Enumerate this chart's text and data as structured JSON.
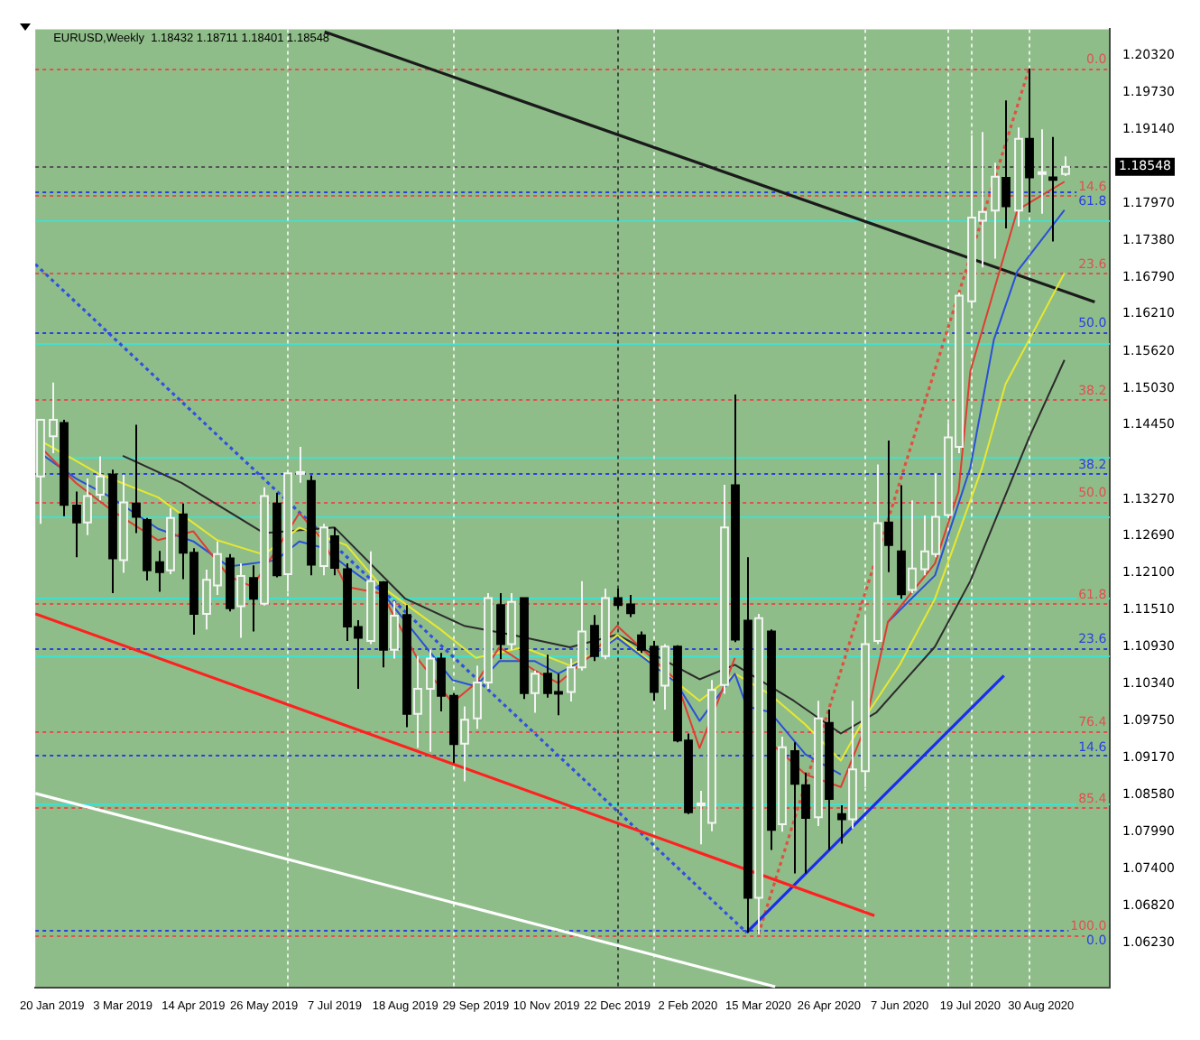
{
  "chart_data": {
    "type": "candlestick",
    "title": "EURUSD,Weekly  1.18432 1.18711 1.18401 1.18548",
    "x": [
      "2019-01-13",
      "2019-01-20",
      "2019-01-27",
      "2019-02-03",
      "2019-02-10",
      "2019-02-17",
      "2019-02-24",
      "2019-03-03",
      "2019-03-10",
      "2019-03-17",
      "2019-03-24",
      "2019-03-31",
      "2019-04-07",
      "2019-04-14",
      "2019-04-21",
      "2019-04-28",
      "2019-05-05",
      "2019-05-12",
      "2019-05-19",
      "2019-05-26",
      "2019-06-02",
      "2019-06-09",
      "2019-06-16",
      "2019-06-23",
      "2019-06-30",
      "2019-07-07",
      "2019-07-14",
      "2019-07-21",
      "2019-07-28",
      "2019-08-04",
      "2019-08-11",
      "2019-08-18",
      "2019-08-25",
      "2019-09-01",
      "2019-09-08",
      "2019-09-15",
      "2019-09-22",
      "2019-09-29",
      "2019-10-06",
      "2019-10-13",
      "2019-10-20",
      "2019-10-27",
      "2019-11-03",
      "2019-11-10",
      "2019-11-17",
      "2019-11-24",
      "2019-12-01",
      "2019-12-08",
      "2019-12-15",
      "2019-12-22",
      "2019-12-29",
      "2020-01-05",
      "2020-01-12",
      "2020-01-19",
      "2020-01-26",
      "2020-02-02",
      "2020-02-09",
      "2020-02-16",
      "2020-02-23",
      "2020-03-01",
      "2020-03-08",
      "2020-03-15",
      "2020-03-22",
      "2020-03-29",
      "2020-04-05",
      "2020-04-12",
      "2020-04-19",
      "2020-04-26",
      "2020-05-03",
      "2020-05-10",
      "2020-05-17",
      "2020-05-24",
      "2020-05-31",
      "2020-06-07",
      "2020-06-14",
      "2020-06-21",
      "2020-06-28",
      "2020-07-05",
      "2020-07-12",
      "2020-07-19",
      "2020-07-26",
      "2020-08-02",
      "2020-08-09",
      "2020-08-16",
      "2020-08-23",
      "2020-08-30",
      "2020-09-06",
      "2020-09-13"
    ],
    "ohlc": [
      [
        1.1363,
        1.1453,
        1.1288,
        1.1453
      ],
      [
        1.1427,
        1.1512,
        1.14,
        1.1453
      ],
      [
        1.1448,
        1.1453,
        1.13,
        1.1318
      ],
      [
        1.1317,
        1.1339,
        1.1235,
        1.129
      ],
      [
        1.129,
        1.136,
        1.127,
        1.1332
      ],
      [
        1.1334,
        1.1395,
        1.1325,
        1.1363
      ],
      [
        1.1366,
        1.1374,
        1.1178,
        1.1233
      ],
      [
        1.123,
        1.1366,
        1.121,
        1.1322
      ],
      [
        1.132,
        1.1445,
        1.1273,
        1.1299
      ],
      [
        1.1294,
        1.1297,
        1.1198,
        1.1214
      ],
      [
        1.1227,
        1.1245,
        1.118,
        1.1211
      ],
      [
        1.1214,
        1.1313,
        1.1208,
        1.1297
      ],
      [
        1.1303,
        1.132,
        1.12,
        1.1242
      ],
      [
        1.1242,
        1.1249,
        1.1112,
        1.1145
      ],
      [
        1.1145,
        1.1215,
        1.112,
        1.1199
      ],
      [
        1.119,
        1.126,
        1.1175,
        1.124
      ],
      [
        1.1233,
        1.124,
        1.1149,
        1.1154
      ],
      [
        1.1157,
        1.1225,
        1.1107,
        1.1205
      ],
      [
        1.1202,
        1.1222,
        1.1117,
        1.1169
      ],
      [
        1.1161,
        1.1346,
        1.1158,
        1.1332
      ],
      [
        1.132,
        1.1337,
        1.1203,
        1.1206
      ],
      [
        1.1208,
        1.1373,
        1.118,
        1.1368
      ],
      [
        1.1369,
        1.141,
        1.1353,
        1.137
      ],
      [
        1.1356,
        1.1365,
        1.1206,
        1.1223
      ],
      [
        1.1221,
        1.1288,
        1.1206,
        1.1282
      ],
      [
        1.1268,
        1.1282,
        1.1206,
        1.1218
      ],
      [
        1.1216,
        1.1225,
        1.1102,
        1.1125
      ],
      [
        1.1124,
        1.1135,
        1.1026,
        1.1107
      ],
      [
        1.1102,
        1.1244,
        1.1097,
        1.1197
      ],
      [
        1.1195,
        1.1197,
        1.106,
        1.1088
      ],
      [
        1.1088,
        1.1165,
        1.1074,
        1.1142
      ],
      [
        1.1143,
        1.1159,
        1.0965,
        1.0986
      ],
      [
        1.0986,
        1.1078,
        1.0932,
        1.1026
      ],
      [
        1.1026,
        1.1088,
        1.0926,
        1.1074
      ],
      [
        1.1074,
        1.1083,
        1.099,
        1.1015
      ],
      [
        1.1015,
        1.1019,
        1.0908,
        1.0938
      ],
      [
        1.0939,
        1.0998,
        1.0879,
        1.0977
      ],
      [
        1.0979,
        1.1063,
        1.0962,
        1.1036
      ],
      [
        1.1036,
        1.1178,
        1.1026,
        1.117
      ],
      [
        1.1159,
        1.1178,
        1.1073,
        1.1097
      ],
      [
        1.1097,
        1.1178,
        1.1088,
        1.1164
      ],
      [
        1.117,
        1.117,
        1.101,
        1.1019
      ],
      [
        1.1019,
        1.1055,
        1.0988,
        1.105
      ],
      [
        1.105,
        1.108,
        1.1012,
        1.1019
      ],
      [
        1.1021,
        1.105,
        1.0984,
        1.1019
      ],
      [
        1.1021,
        1.1074,
        1.1006,
        1.106
      ],
      [
        1.106,
        1.1197,
        1.1055,
        1.1117
      ],
      [
        1.1126,
        1.1143,
        1.107,
        1.1078
      ],
      [
        1.1078,
        1.1185,
        1.1073,
        1.117
      ],
      [
        1.117,
        1.1185,
        1.1153,
        1.1159
      ],
      [
        1.116,
        1.1175,
        1.114,
        1.1146
      ],
      [
        1.1111,
        1.1117,
        1.1083,
        1.1088
      ],
      [
        1.1093,
        1.1102,
        1.1007,
        1.1021
      ],
      [
        1.1031,
        1.1097,
        1.0993,
        1.1093
      ],
      [
        1.1093,
        1.1095,
        1.0941,
        1.0944
      ],
      [
        1.0944,
        1.0955,
        1.0827,
        1.083
      ],
      [
        1.0844,
        1.0864,
        1.0779,
        1.0844
      ],
      [
        1.0813,
        1.104,
        1.08,
        1.1024
      ],
      [
        1.1032,
        1.135,
        1.1018,
        1.1282
      ],
      [
        1.1349,
        1.1493,
        1.11,
        1.1104
      ],
      [
        1.1134,
        1.1235,
        1.0639,
        1.0694
      ],
      [
        1.0694,
        1.1145,
        1.0636,
        1.1138
      ],
      [
        1.1117,
        1.112,
        1.077,
        1.0802
      ],
      [
        1.0811,
        1.095,
        1.0799,
        1.0933
      ],
      [
        1.0927,
        1.0941,
        1.0733,
        1.0875
      ],
      [
        1.0873,
        1.0893,
        1.0733,
        1.0821
      ],
      [
        1.0822,
        1.1007,
        1.0808,
        1.0979
      ],
      [
        1.0972,
        1.0993,
        1.077,
        1.0851
      ],
      [
        1.0827,
        1.0841,
        1.078,
        1.0819
      ],
      [
        1.0819,
        1.1007,
        1.0804,
        1.0898
      ],
      [
        1.0895,
        1.1142,
        1.087,
        1.1097
      ],
      [
        1.1102,
        1.1382,
        1.1097,
        1.1289
      ],
      [
        1.129,
        1.142,
        1.1211,
        1.1254
      ],
      [
        1.1244,
        1.1349,
        1.1169,
        1.1176
      ],
      [
        1.1183,
        1.1325,
        1.1178,
        1.1217
      ],
      [
        1.1216,
        1.1301,
        1.1206,
        1.1244
      ],
      [
        1.124,
        1.1368,
        1.1235,
        1.1299
      ],
      [
        1.1302,
        1.1448,
        1.1297,
        1.1425
      ],
      [
        1.141,
        1.1655,
        1.14,
        1.165
      ],
      [
        1.1641,
        1.1905,
        1.163,
        1.1774
      ],
      [
        1.1769,
        1.191,
        1.1695,
        1.1783
      ],
      [
        1.1785,
        1.1861,
        1.1709,
        1.1839
      ],
      [
        1.1837,
        1.196,
        1.1757,
        1.1792
      ],
      [
        1.1785,
        1.1917,
        1.176,
        1.1899
      ],
      [
        1.1899,
        1.2011,
        1.1782,
        1.1838
      ],
      [
        1.1844,
        1.1914,
        1.178,
        1.1846
      ],
      [
        1.1838,
        1.1902,
        1.1736,
        1.1834
      ],
      [
        1.18432,
        1.18711,
        1.18401,
        1.18548
      ]
    ],
    "series": [
      {
        "type": "line",
        "color": "#e03c31",
        "x": [
          "2019-01-13",
          "2019-02-03",
          "2019-02-24",
          "2019-03-24",
          "2019-04-14",
          "2019-05-05",
          "2019-05-19",
          "2019-06-02",
          "2019-06-16",
          "2019-06-30",
          "2019-07-14",
          "2019-08-04",
          "2019-08-25",
          "2019-09-15",
          "2019-09-29",
          "2019-10-13",
          "2019-11-03",
          "2019-11-17",
          "2019-12-08",
          "2019-12-22",
          "2020-01-26",
          "2020-02-09",
          "2020-03-01",
          "2020-03-08",
          "2020-03-22",
          "2020-04-12",
          "2020-05-03",
          "2020-05-17",
          "2020-05-31",
          "2020-06-28",
          "2020-07-12",
          "2020-07-19",
          "2020-08-16",
          "2020-09-13"
        ],
        "values": [
          1.141,
          1.1353,
          1.131,
          1.1262,
          1.1276,
          1.1205,
          1.1188,
          1.1245,
          1.1305,
          1.1262,
          1.1188,
          1.1177,
          1.1075,
          1.1004,
          1.1035,
          1.1092,
          1.1055,
          1.1035,
          1.1083,
          1.1126,
          1.104,
          1.0932,
          1.1075,
          null,
          1.0941,
          1.089,
          1.087,
          1.0962,
          1.1132,
          1.1225,
          1.1339,
          1.153,
          1.1786,
          1.1831
        ]
      },
      {
        "type": "line",
        "color": "#2a4fd8",
        "x": [
          "2019-01-13",
          "2019-02-03",
          "2019-02-24",
          "2019-03-24",
          "2019-04-14",
          "2019-05-05",
          "2019-06-02",
          "2019-06-16",
          "2019-06-30",
          "2019-07-14",
          "2019-08-04",
          "2019-08-25",
          "2019-09-15",
          "2019-09-29",
          "2019-10-13",
          "2019-11-03",
          "2019-11-17",
          "2019-12-08",
          "2019-12-22",
          "2020-01-26",
          "2020-02-09",
          "2020-03-01",
          "2020-03-08",
          "2020-03-22",
          "2020-04-12",
          "2020-05-03",
          "2020-05-17",
          "2020-05-31",
          "2020-06-28",
          "2020-07-19",
          "2020-08-02",
          "2020-08-16",
          "2020-09-13"
        ],
        "values": [
          1.14,
          1.136,
          1.133,
          1.128,
          1.126,
          1.122,
          1.123,
          1.126,
          1.125,
          1.122,
          1.118,
          1.111,
          1.104,
          1.103,
          1.107,
          1.107,
          1.105,
          1.108,
          1.1107,
          1.1036,
          1.0975,
          1.105,
          1.0998,
          1.0989,
          1.0922,
          1.089,
          null,
          1.1132,
          1.1206,
          1.1377,
          1.158,
          1.1689,
          1.1786
        ]
      },
      {
        "type": "line",
        "color": "#e8e830",
        "x": [
          "2019-01-13",
          "2019-02-17",
          "2019-03-24",
          "2019-04-28",
          "2019-05-26",
          "2019-06-16",
          "2019-07-14",
          "2019-08-04",
          "2019-09-08",
          "2019-09-29",
          "2019-10-27",
          "2019-11-24",
          "2019-12-15",
          "2019-12-22",
          "2020-02-09",
          "2020-03-01",
          "2020-03-22",
          "2020-04-12",
          "2020-05-03",
          "2020-05-17",
          "2020-06-07",
          "2020-06-28",
          "2020-07-26",
          "2020-08-09",
          "2020-08-23",
          "2020-09-13"
        ],
        "values": [
          1.142,
          1.1367,
          1.133,
          1.1262,
          1.1239,
          1.1282,
          1.1254,
          1.1188,
          1.112,
          1.1075,
          1.1092,
          1.1063,
          1.1092,
          1.1112,
          1.1007,
          1.105,
          1.1017,
          1.0969,
          1.0912,
          1.0979,
          1.1064,
          1.1169,
          1.1377,
          1.151,
          1.158,
          1.1686
        ]
      },
      {
        "type": "line",
        "color": "#2b2b2b",
        "x": [
          "2019-03-03",
          "2019-04-07",
          "2019-05-26",
          "2019-07-07",
          "2019-08-18",
          "2019-09-22",
          "2019-10-20",
          "2019-11-24",
          "2019-12-22",
          "2020-02-09",
          "2020-03-01",
          "2020-04-05",
          "2020-05-03",
          "2020-05-24",
          "2020-06-28",
          "2020-07-19",
          "2020-08-23",
          "2020-09-13"
        ],
        "values": [
          1.1396,
          1.1353,
          1.1273,
          1.1282,
          1.1169,
          1.1126,
          1.1112,
          1.1092,
          1.1112,
          1.1041,
          1.1064,
          1.1007,
          1.0955,
          1.0988,
          1.1093,
          1.1197,
          1.1425,
          1.1548
        ]
      },
      {
        "type": "line",
        "color": "#1a1a1a",
        "x": [
          "2019-07-01",
          "2020-10-01"
        ],
        "values": [
          1.2069,
          1.164
        ]
      },
      {
        "type": "line",
        "color": "#ff2020",
        "x": [
          "2019-01-10",
          "2020-05-23"
        ],
        "values": [
          1.1145,
          1.0666
        ]
      },
      {
        "type": "line",
        "color": "#ffffff",
        "x": [
          "2019-01-10",
          "2020-03-25"
        ],
        "values": [
          1.086,
          1.0553
        ]
      },
      {
        "type": "line",
        "color": "#1a2cf0",
        "x": [
          "2020-03-08",
          "2020-08-08"
        ],
        "values": [
          1.0639,
          1.1047
        ]
      },
      {
        "type": "line",
        "color": "#3050e0",
        "line_style": "dotted",
        "x": [
          "2019-01-10",
          "2020-03-08"
        ],
        "values": [
          1.17,
          1.0639
        ]
      },
      {
        "type": "line",
        "color": "#e05040",
        "line_style": "dotted",
        "x": [
          "2020-03-15",
          "2020-08-23"
        ],
        "values": [
          1.0636,
          1.2011
        ]
      }
    ],
    "xlim": [
      "2019-01-10",
      "2020-10-10"
    ],
    "xticks": [
      {
        "value": "2019-01-20",
        "label": "20 Jan 2019"
      },
      {
        "value": "2019-03-03",
        "label": "3 Mar 2019"
      },
      {
        "value": "2019-04-14",
        "label": "14 Apr 2019"
      },
      {
        "value": "2019-05-26",
        "label": "26 May 2019"
      },
      {
        "value": "2019-07-07",
        "label": "7 Jul 2019"
      },
      {
        "value": "2019-08-18",
        "label": "18 Aug 2019"
      },
      {
        "value": "2019-09-29",
        "label": "29 Sep 2019"
      },
      {
        "value": "2019-11-10",
        "label": "10 Nov 2019"
      },
      {
        "value": "2019-12-22",
        "label": "22 Dec 2019"
      },
      {
        "value": "2020-02-02",
        "label": "2 Feb 2020"
      },
      {
        "value": "2020-03-15",
        "label": "15 Mar 2020"
      },
      {
        "value": "2020-04-26",
        "label": "26 Apr 2020"
      },
      {
        "value": "2020-06-07",
        "label": "7 Jun 2020"
      },
      {
        "value": "2020-07-19",
        "label": "19 Jul 2020"
      },
      {
        "value": "2020-08-30",
        "label": "30 Aug 2020"
      }
    ],
    "ylim": [
      1.0551,
      1.2073
    ],
    "yticks": [
      {
        "value": 1.0623,
        "label": "1.06230"
      },
      {
        "value": 1.0682,
        "label": "1.06820"
      },
      {
        "value": 1.074,
        "label": "1.07400"
      },
      {
        "value": 1.0799,
        "label": "1.07990"
      },
      {
        "value": 1.0858,
        "label": "1.08580"
      },
      {
        "value": 1.0917,
        "label": "1.09170"
      },
      {
        "value": 1.0975,
        "label": "1.09750"
      },
      {
        "value": 1.1034,
        "label": "1.10340"
      },
      {
        "value": 1.1093,
        "label": "1.10930"
      },
      {
        "value": 1.1151,
        "label": "1.11510"
      },
      {
        "value": 1.121,
        "label": "1.12100"
      },
      {
        "value": 1.1269,
        "label": "1.12690"
      },
      {
        "value": 1.1327,
        "label": "1.13270"
      },
      {
        "value": 1.1445,
        "label": "1.14450"
      },
      {
        "value": 1.1503,
        "label": "1.15030"
      },
      {
        "value": 1.1562,
        "label": "1.15620"
      },
      {
        "value": 1.1621,
        "label": "1.16210"
      },
      {
        "value": 1.1679,
        "label": "1.16790"
      },
      {
        "value": 1.1738,
        "label": "1.17380"
      },
      {
        "value": 1.1797,
        "label": "1.17970"
      },
      {
        "value": 1.1914,
        "label": "1.19140"
      },
      {
        "value": 1.1973,
        "label": "1.19730"
      },
      {
        "value": 1.2032,
        "label": "1.20320"
      }
    ],
    "ref_lines": [
      {
        "axis": "y",
        "value": 1.2011,
        "color": "#e05050",
        "line_style": "dotted"
      },
      {
        "axis": "y",
        "value": 1.181,
        "color": "#e05050",
        "line_style": "dotted"
      },
      {
        "axis": "y",
        "value": 1.1686,
        "color": "#e05050",
        "line_style": "dotted"
      },
      {
        "axis": "y",
        "value": 1.1486,
        "color": "#e05050",
        "line_style": "dotted"
      },
      {
        "axis": "y",
        "value": 1.1324,
        "color": "#e05050",
        "line_style": "dotted"
      },
      {
        "axis": "y",
        "value": 1.1161,
        "color": "#e05050",
        "line_style": "dotted"
      },
      {
        "axis": "y",
        "value": 1.096,
        "color": "#e05050",
        "line_style": "dotted"
      },
      {
        "axis": "y",
        "value": 1.0837,
        "color": "#e05050",
        "line_style": "dotted"
      },
      {
        "axis": "y",
        "value": 1.0636,
        "color": "#e05050",
        "line_style": "dotted"
      },
      {
        "axis": "y",
        "value": 1.1817,
        "color": "#2a40e0",
        "line_style": "dotted"
      },
      {
        "axis": "y",
        "value": 1.1593,
        "color": "#2a40e0",
        "line_style": "dotted"
      },
      {
        "axis": "y",
        "value": 1.1368,
        "color": "#2a40e0",
        "line_style": "dotted"
      },
      {
        "axis": "y",
        "value": 1.1091,
        "color": "#2a40e0",
        "line_style": "dotted"
      },
      {
        "axis": "y",
        "value": 1.092,
        "color": "#2a40e0",
        "line_style": "dotted"
      },
      {
        "axis": "y",
        "value": 1.0642,
        "color": "#2a40e0",
        "line_style": "dotted"
      },
      {
        "axis": "y",
        "value": 1.18548,
        "label": "1.18548",
        "color": "#555555",
        "line_style": "dotted"
      },
      {
        "axis": "y",
        "value": 1.1771,
        "color": "#40e0d0",
        "line_style": "solid"
      },
      {
        "axis": "y",
        "value": 1.1575,
        "color": "#40e0d0",
        "line_style": "solid"
      },
      {
        "axis": "y",
        "value": 1.1395,
        "color": "#40e0d0",
        "line_style": "solid"
      },
      {
        "axis": "y",
        "value": 1.13,
        "color": "#40e0d0",
        "line_style": "solid"
      },
      {
        "axis": "y",
        "value": 1.117,
        "color": "#40e0d0",
        "line_style": "solid"
      },
      {
        "axis": "y",
        "value": 1.108,
        "color": "#40e0d0",
        "line_style": "solid"
      },
      {
        "axis": "y",
        "value": 1.0845,
        "color": "#40e0d0",
        "line_style": "solid"
      },
      {
        "axis": "x",
        "value": "2019-06-09",
        "color": "#e8f0e8",
        "line_style": "dotted"
      },
      {
        "axis": "x",
        "value": "2019-09-15",
        "color": "#e8f0e8",
        "line_style": "dotted"
      },
      {
        "axis": "x",
        "value": "2019-12-22",
        "color": "#3a4a3a",
        "line_style": "dotted"
      },
      {
        "axis": "x",
        "value": "2020-01-12",
        "color": "#e8f0e8",
        "line_style": "dotted"
      },
      {
        "axis": "x",
        "value": "2020-05-17",
        "color": "#e8f0e8",
        "line_style": "dotted"
      },
      {
        "axis": "x",
        "value": "2020-07-05",
        "color": "#e8f0e8",
        "line_style": "dotted"
      },
      {
        "axis": "x",
        "value": "2020-07-19",
        "color": "#e8f0e8",
        "line_style": "dotted"
      },
      {
        "axis": "x",
        "value": "2020-08-23",
        "color": "#e8f0e8",
        "line_style": "dotted"
      }
    ],
    "annotations": [
      {
        "text": "0.0",
        "x": "2020-10-08",
        "y": 1.2011
      },
      {
        "text": "14.6",
        "x": "2020-10-08",
        "y": 1.181
      },
      {
        "text": "23.6",
        "x": "2020-10-08",
        "y": 1.1686
      },
      {
        "text": "38.2",
        "x": "2020-10-08",
        "y": 1.1486
      },
      {
        "text": "50.0",
        "x": "2020-10-08",
        "y": 1.1324
      },
      {
        "text": "61.8",
        "x": "2020-10-08",
        "y": 1.1161
      },
      {
        "text": "76.4",
        "x": "2020-10-08",
        "y": 1.096
      },
      {
        "text": "85.4",
        "x": "2020-10-08",
        "y": 1.0837
      },
      {
        "text": "100.0",
        "x": "2020-10-08",
        "y": 1.0636
      },
      {
        "text": "61.8",
        "x": "2020-10-08",
        "y": 1.1817
      },
      {
        "text": "50.0",
        "x": "2020-10-08",
        "y": 1.1593
      },
      {
        "text": "38.2",
        "x": "2020-10-08",
        "y": 1.1368
      },
      {
        "text": "23.6",
        "x": "2020-10-08",
        "y": 1.1091
      },
      {
        "text": "14.6",
        "x": "2020-10-08",
        "y": 1.092
      },
      {
        "text": "0.0",
        "x": "2020-10-08",
        "y": 1.0642
      }
    ]
  }
}
